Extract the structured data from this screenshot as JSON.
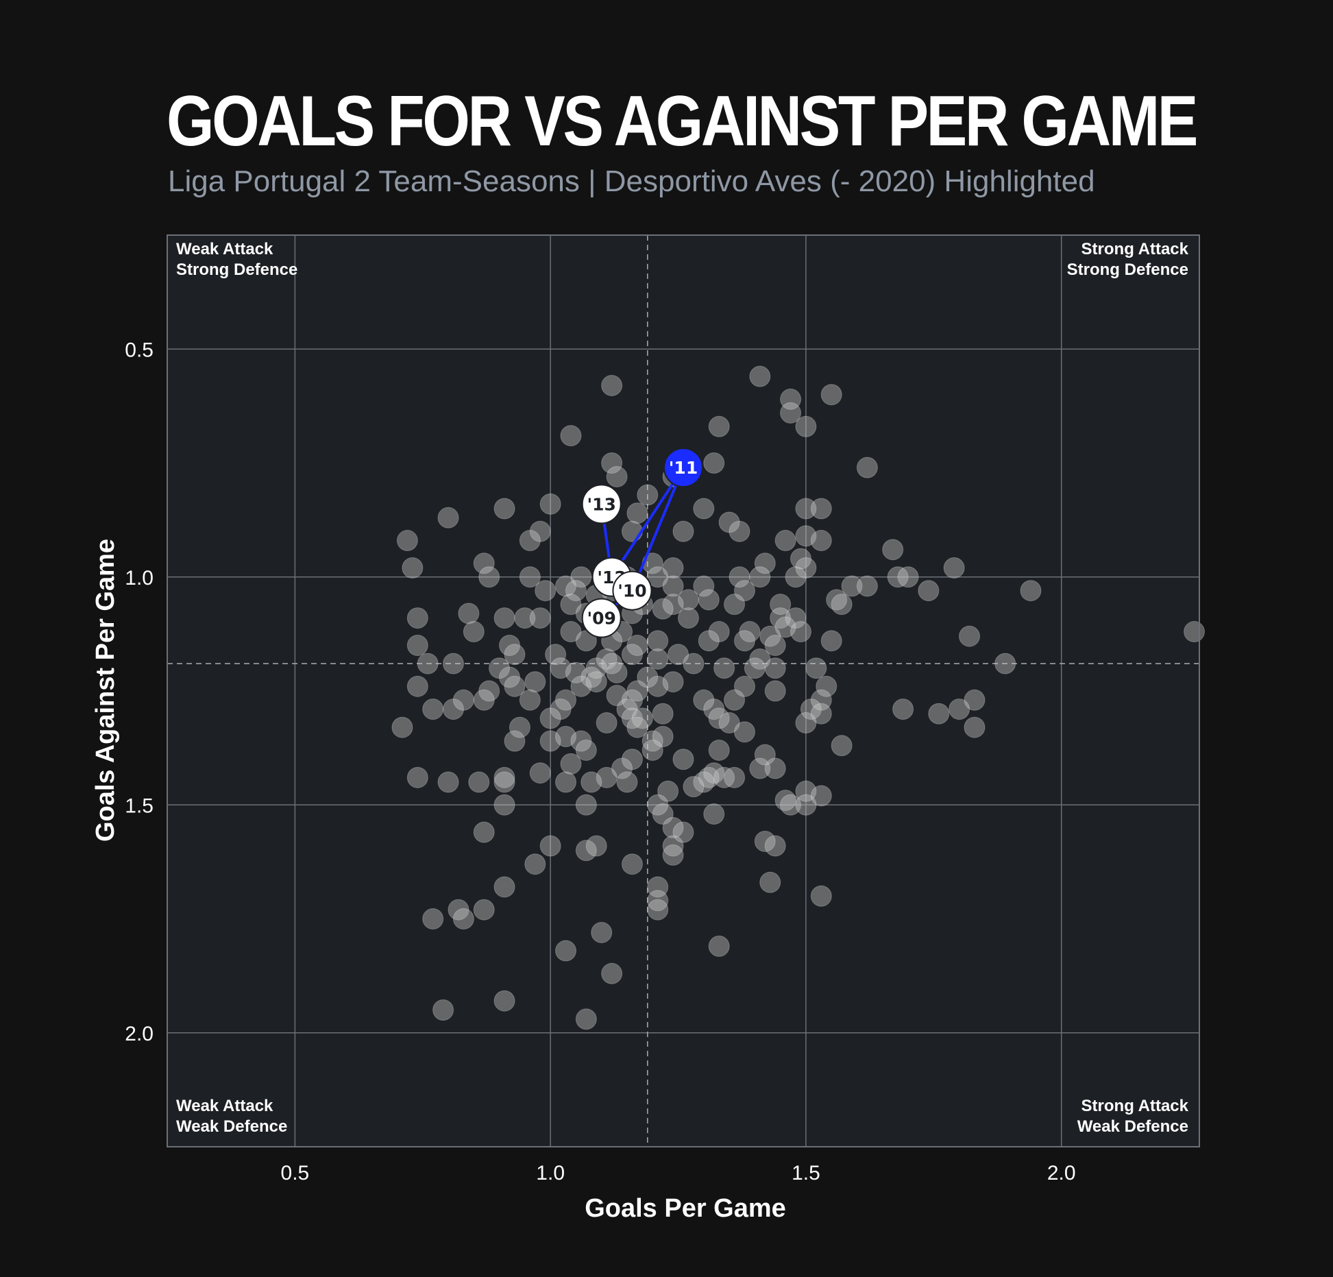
{
  "title": "GOALS FOR VS AGAINST PER GAME",
  "subtitle": "Liga Portugal 2 Team-Seasons | Desportivo Aves (- 2020) Highlighted",
  "quadrants": {
    "top_left": "Weak Attack\nStrong Defence",
    "top_right": "Strong Attack\nStrong Defence",
    "bottom_left": "Weak Attack\nWeak Defence",
    "bottom_right": "Strong Attack\nWeak Defence"
  },
  "colors": {
    "background": "#121212",
    "plot_background": "#1d2024",
    "grid": "#6b7078",
    "point": "#c8c8c8",
    "highlight": "#1a2cff",
    "highlight_line": "#1a2cff",
    "subtitle": "#8f98a5"
  },
  "chart_data": {
    "type": "scatter",
    "title": "GOALS FOR VS AGAINST PER GAME",
    "subtitle": "Liga Portugal 2 Team-Seasons | Desportivo Aves (- 2020) Highlighted",
    "xlabel": "Goals Per Game",
    "ylabel": "Goals Against Per Game",
    "xlim": [
      0.25,
      2.27
    ],
    "ylim": [
      2.25,
      0.25
    ],
    "y_inverted": true,
    "xticks": [
      "0.5",
      "1.0",
      "1.5",
      "2.0"
    ],
    "yticks": [
      "0.5",
      "1.0",
      "1.5",
      "2.0"
    ],
    "grid": true,
    "reference_lines": {
      "x": 1.19,
      "y": 1.19
    },
    "series": [
      {
        "points": [
          [
            1.12,
            0.58
          ],
          [
            1.41,
            0.56
          ],
          [
            1.47,
            0.61
          ],
          [
            1.55,
            0.6
          ],
          [
            1.47,
            0.64
          ],
          [
            1.33,
            0.67
          ],
          [
            1.5,
            0.67
          ],
          [
            1.04,
            0.69
          ],
          [
            1.32,
            0.75
          ],
          [
            1.12,
            0.75
          ],
          [
            1.13,
            0.78
          ],
          [
            1.62,
            0.76
          ],
          [
            1.24,
            0.78
          ],
          [
            1.19,
            0.82
          ],
          [
            1.0,
            0.84
          ],
          [
            0.91,
            0.85
          ],
          [
            1.17,
            0.86
          ],
          [
            0.8,
            0.87
          ],
          [
            1.3,
            0.85
          ],
          [
            1.5,
            0.85
          ],
          [
            1.53,
            0.85
          ],
          [
            1.35,
            0.88
          ],
          [
            1.37,
            0.9
          ],
          [
            1.26,
            0.9
          ],
          [
            0.98,
            0.9
          ],
          [
            0.96,
            0.92
          ],
          [
            0.72,
            0.92
          ],
          [
            1.16,
            0.9
          ],
          [
            1.46,
            0.92
          ],
          [
            1.5,
            0.91
          ],
          [
            1.53,
            0.92
          ],
          [
            1.67,
            0.94
          ],
          [
            0.73,
            0.98
          ],
          [
            0.87,
            0.97
          ],
          [
            1.2,
            0.97
          ],
          [
            1.24,
            0.98
          ],
          [
            1.42,
            0.97
          ],
          [
            1.49,
            0.96
          ],
          [
            1.5,
            0.98
          ],
          [
            1.79,
            0.98
          ],
          [
            0.88,
            1.0
          ],
          [
            0.96,
            1.0
          ],
          [
            1.06,
            1.0
          ],
          [
            1.15,
            1.0
          ],
          [
            1.21,
            1.0
          ],
          [
            1.3,
            1.02
          ],
          [
            1.37,
            1.0
          ],
          [
            1.41,
            1.0
          ],
          [
            1.48,
            1.0
          ],
          [
            1.68,
            1.0
          ],
          [
            1.7,
            1.0
          ],
          [
            0.99,
            1.03
          ],
          [
            1.03,
            1.02
          ],
          [
            1.05,
            1.03
          ],
          [
            1.09,
            1.04
          ],
          [
            1.12,
            1.03
          ],
          [
            1.24,
            1.02
          ],
          [
            1.27,
            1.05
          ],
          [
            1.38,
            1.03
          ],
          [
            1.59,
            1.02
          ],
          [
            1.62,
            1.02
          ],
          [
            1.74,
            1.03
          ],
          [
            1.94,
            1.03
          ],
          [
            1.04,
            1.06
          ],
          [
            1.1,
            1.07
          ],
          [
            1.18,
            1.06
          ],
          [
            1.24,
            1.06
          ],
          [
            1.31,
            1.05
          ],
          [
            1.36,
            1.06
          ],
          [
            1.45,
            1.06
          ],
          [
            1.56,
            1.05
          ],
          [
            1.57,
            1.06
          ],
          [
            0.74,
            1.09
          ],
          [
            0.84,
            1.08
          ],
          [
            0.91,
            1.09
          ],
          [
            0.95,
            1.09
          ],
          [
            0.98,
            1.09
          ],
          [
            1.07,
            1.08
          ],
          [
            1.16,
            1.08
          ],
          [
            1.22,
            1.07
          ],
          [
            1.27,
            1.09
          ],
          [
            1.45,
            1.09
          ],
          [
            1.48,
            1.09
          ],
          [
            0.85,
            1.12
          ],
          [
            1.04,
            1.12
          ],
          [
            1.14,
            1.12
          ],
          [
            1.21,
            1.14
          ],
          [
            1.33,
            1.12
          ],
          [
            1.39,
            1.12
          ],
          [
            1.46,
            1.11
          ],
          [
            1.49,
            1.12
          ],
          [
            0.74,
            1.15
          ],
          [
            0.92,
            1.15
          ],
          [
            1.07,
            1.14
          ],
          [
            1.12,
            1.14
          ],
          [
            1.17,
            1.15
          ],
          [
            1.31,
            1.14
          ],
          [
            1.38,
            1.14
          ],
          [
            1.43,
            1.13
          ],
          [
            1.44,
            1.15
          ],
          [
            1.55,
            1.14
          ],
          [
            1.82,
            1.13
          ],
          [
            2.26,
            1.12
          ],
          [
            0.93,
            1.17
          ],
          [
            1.01,
            1.17
          ],
          [
            1.11,
            1.18
          ],
          [
            1.16,
            1.17
          ],
          [
            1.21,
            1.18
          ],
          [
            1.25,
            1.17
          ],
          [
            1.41,
            1.18
          ],
          [
            0.76,
            1.19
          ],
          [
            0.81,
            1.19
          ],
          [
            0.9,
            1.2
          ],
          [
            1.02,
            1.2
          ],
          [
            1.09,
            1.2
          ],
          [
            1.12,
            1.19
          ],
          [
            1.28,
            1.19
          ],
          [
            1.44,
            1.2
          ],
          [
            1.52,
            1.2
          ],
          [
            1.89,
            1.19
          ],
          [
            0.92,
            1.22
          ],
          [
            0.97,
            1.23
          ],
          [
            1.05,
            1.21
          ],
          [
            1.08,
            1.22
          ],
          [
            1.13,
            1.21
          ],
          [
            1.19,
            1.22
          ],
          [
            1.24,
            1.23
          ],
          [
            1.34,
            1.2
          ],
          [
            1.4,
            1.2
          ],
          [
            0.74,
            1.24
          ],
          [
            0.88,
            1.25
          ],
          [
            0.93,
            1.24
          ],
          [
            1.06,
            1.24
          ],
          [
            1.09,
            1.23
          ],
          [
            1.17,
            1.25
          ],
          [
            1.21,
            1.24
          ],
          [
            1.38,
            1.24
          ],
          [
            1.44,
            1.25
          ],
          [
            1.54,
            1.24
          ],
          [
            0.87,
            1.27
          ],
          [
            0.96,
            1.27
          ],
          [
            1.03,
            1.27
          ],
          [
            1.13,
            1.26
          ],
          [
            1.16,
            1.27
          ],
          [
            1.3,
            1.27
          ],
          [
            1.36,
            1.27
          ],
          [
            1.53,
            1.27
          ],
          [
            1.83,
            1.27
          ],
          [
            0.77,
            1.29
          ],
          [
            0.81,
            1.29
          ],
          [
            0.83,
            1.27
          ],
          [
            1.02,
            1.29
          ],
          [
            1.15,
            1.29
          ],
          [
            1.22,
            1.3
          ],
          [
            1.32,
            1.29
          ],
          [
            1.51,
            1.29
          ],
          [
            1.53,
            1.3
          ],
          [
            1.69,
            1.29
          ],
          [
            1.76,
            1.3
          ],
          [
            1.8,
            1.29
          ],
          [
            1.0,
            1.31
          ],
          [
            1.16,
            1.31
          ],
          [
            1.18,
            1.31
          ],
          [
            1.33,
            1.31
          ],
          [
            0.71,
            1.33
          ],
          [
            0.94,
            1.33
          ],
          [
            1.11,
            1.32
          ],
          [
            1.17,
            1.33
          ],
          [
            1.35,
            1.32
          ],
          [
            1.5,
            1.32
          ],
          [
            1.83,
            1.33
          ],
          [
            0.93,
            1.36
          ],
          [
            1.0,
            1.36
          ],
          [
            1.03,
            1.35
          ],
          [
            1.06,
            1.36
          ],
          [
            1.2,
            1.36
          ],
          [
            1.22,
            1.35
          ],
          [
            1.38,
            1.34
          ],
          [
            1.57,
            1.37
          ],
          [
            1.07,
            1.38
          ],
          [
            1.2,
            1.38
          ],
          [
            1.33,
            1.38
          ],
          [
            1.26,
            1.4
          ],
          [
            1.16,
            1.4
          ],
          [
            1.14,
            1.42
          ],
          [
            1.41,
            1.42
          ],
          [
            1.42,
            1.39
          ],
          [
            1.44,
            1.42
          ],
          [
            1.04,
            1.41
          ],
          [
            0.98,
            1.43
          ],
          [
            1.11,
            1.44
          ],
          [
            1.31,
            1.44
          ],
          [
            1.32,
            1.43
          ],
          [
            1.34,
            1.44
          ],
          [
            0.74,
            1.44
          ],
          [
            0.91,
            1.44
          ],
          [
            0.91,
            1.45
          ],
          [
            1.15,
            1.45
          ],
          [
            1.3,
            1.45
          ],
          [
            1.36,
            1.44
          ],
          [
            0.8,
            1.45
          ],
          [
            0.86,
            1.45
          ],
          [
            1.03,
            1.45
          ],
          [
            1.08,
            1.45
          ],
          [
            1.28,
            1.46
          ],
          [
            1.23,
            1.47
          ],
          [
            1.5,
            1.47
          ],
          [
            1.53,
            1.48
          ],
          [
            1.46,
            1.49
          ],
          [
            1.47,
            1.5
          ],
          [
            1.5,
            1.5
          ],
          [
            1.21,
            1.5
          ],
          [
            1.07,
            1.5
          ],
          [
            0.91,
            1.5
          ],
          [
            1.32,
            1.52
          ],
          [
            1.22,
            1.52
          ],
          [
            1.24,
            1.55
          ],
          [
            1.26,
            1.56
          ],
          [
            0.87,
            1.56
          ],
          [
            1.0,
            1.59
          ],
          [
            1.07,
            1.6
          ],
          [
            1.09,
            1.59
          ],
          [
            1.24,
            1.59
          ],
          [
            1.24,
            1.61
          ],
          [
            1.42,
            1.58
          ],
          [
            1.44,
            1.59
          ],
          [
            1.16,
            1.63
          ],
          [
            0.97,
            1.63
          ],
          [
            1.43,
            1.67
          ],
          [
            1.21,
            1.68
          ],
          [
            0.91,
            1.68
          ],
          [
            1.21,
            1.71
          ],
          [
            1.53,
            1.7
          ],
          [
            0.82,
            1.73
          ],
          [
            0.87,
            1.73
          ],
          [
            1.21,
            1.73
          ],
          [
            0.77,
            1.75
          ],
          [
            0.83,
            1.75
          ],
          [
            1.1,
            1.78
          ],
          [
            1.33,
            1.81
          ],
          [
            1.03,
            1.82
          ],
          [
            1.12,
            1.87
          ],
          [
            0.91,
            1.93
          ],
          [
            0.79,
            1.95
          ],
          [
            1.07,
            1.97
          ]
        ]
      },
      {
        "name": "Desportivo Aves (- 2020)",
        "points": [
          {
            "x": 1.1,
            "y": 1.09,
            "label": "'09"
          },
          {
            "x": 1.16,
            "y": 1.03,
            "label": "'10"
          },
          {
            "x": 1.26,
            "y": 0.76,
            "label": "'11"
          },
          {
            "x": 1.12,
            "y": 1.0,
            "label": "'12"
          },
          {
            "x": 1.1,
            "y": 0.84,
            "label": "'13"
          }
        ]
      }
    ]
  }
}
